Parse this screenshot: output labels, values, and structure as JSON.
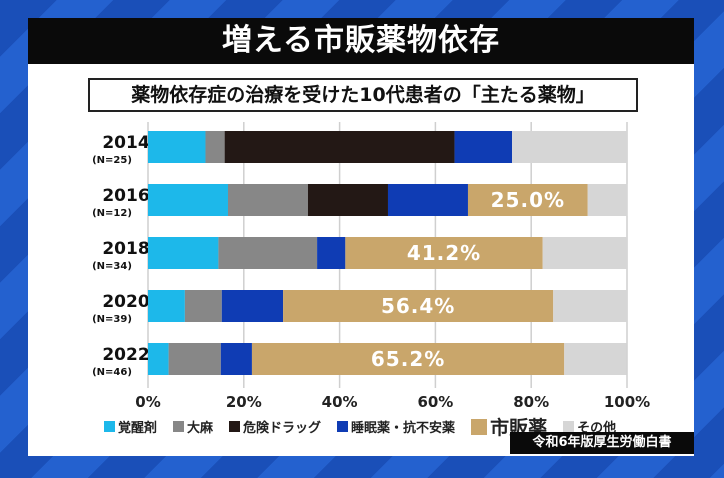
{
  "title": "増える市販薬物依存",
  "chart_data": {
    "type": "bar",
    "orientation": "horizontal",
    "stacked": true,
    "title": "薬物依存症の治療を受けた10代患者の「主たる薬物」",
    "categories": [
      {
        "year": "2014",
        "n": "(N=25)"
      },
      {
        "year": "2016",
        "n": "(N=12)"
      },
      {
        "year": "2018",
        "n": "(N=34)"
      },
      {
        "year": "2020",
        "n": "(N=39)"
      },
      {
        "year": "2022",
        "n": "(N=46)"
      }
    ],
    "series": [
      {
        "name": "覚醒剤",
        "color": "#1db8ea",
        "values": [
          12,
          16.7,
          14.7,
          7.7,
          4.3
        ]
      },
      {
        "name": "大麻",
        "color": "#878787",
        "values": [
          4,
          16.7,
          20.6,
          7.7,
          10.9
        ]
      },
      {
        "name": "危険ドラッグ",
        "color": "#231815",
        "values": [
          48,
          16.7,
          0,
          0,
          0
        ]
      },
      {
        "name": "睡眠薬・抗不安薬",
        "color": "#0f3cb4",
        "values": [
          12,
          16.7,
          5.9,
          12.8,
          6.5
        ]
      },
      {
        "name": "市販薬",
        "color": "#c9a66b",
        "values": [
          0,
          25.0,
          41.2,
          56.4,
          65.2
        ],
        "labels": [
          "",
          "25.0%",
          "41.2%",
          "56.4%",
          "65.2%"
        ]
      },
      {
        "name": "その他",
        "color": "#d6d6d6",
        "values": [
          24,
          8.3,
          17.6,
          15.4,
          13.0
        ]
      }
    ],
    "xlim": [
      0,
      100
    ],
    "xticks": [
      "0%",
      "20%",
      "40%",
      "60%",
      "80%",
      "100%"
    ],
    "grid": true,
    "legend": "bottom"
  },
  "source": "令和6年版厚生労働白書"
}
